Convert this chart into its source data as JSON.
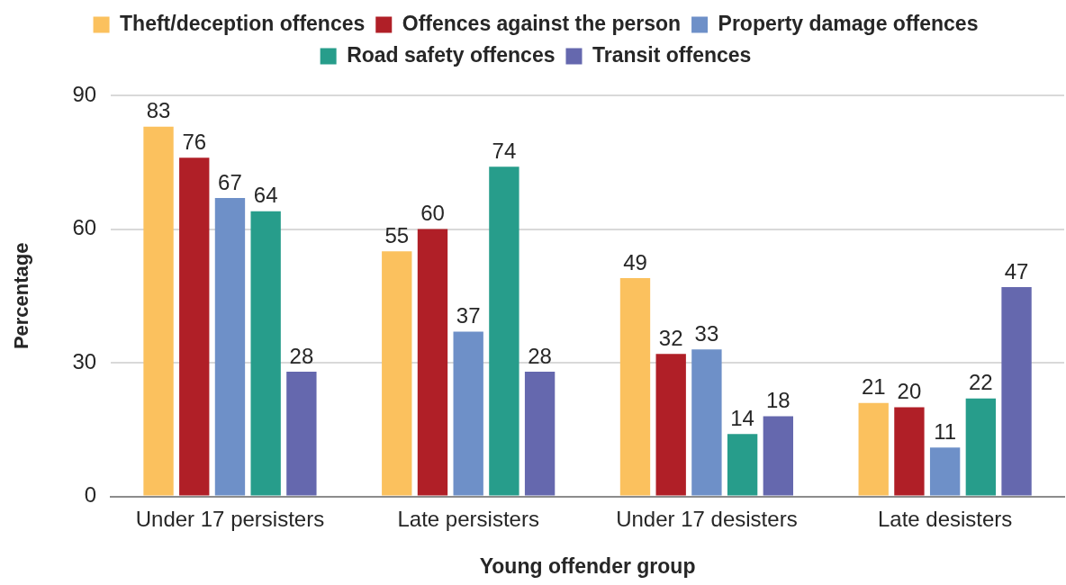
{
  "chart_data": {
    "type": "bar",
    "categories": [
      "Under 17 persisters",
      "Late persisters",
      "Under 17 desisters",
      "Late desisters"
    ],
    "series": [
      {
        "name": "Theft/deception offences",
        "color": "#fbc15e",
        "values": [
          83,
          55,
          49,
          21
        ]
      },
      {
        "name": "Offences against the person",
        "color": "#b01f27",
        "values": [
          76,
          60,
          32,
          20
        ]
      },
      {
        "name": "Property damage offences",
        "color": "#6e90c8",
        "values": [
          67,
          37,
          33,
          11
        ]
      },
      {
        "name": "Road safety offences",
        "color": "#279d8b",
        "values": [
          64,
          74,
          14,
          22
        ]
      },
      {
        "name": "Transit offences",
        "color": "#6568ae",
        "values": [
          28,
          28,
          18,
          47
        ]
      }
    ],
    "xlabel": "Young offender group",
    "ylabel": "Percentage",
    "ylim": [
      0,
      90
    ],
    "yticks": [
      0,
      30,
      60,
      90
    ],
    "grid": "y",
    "legend": "top",
    "data_labels": true
  }
}
